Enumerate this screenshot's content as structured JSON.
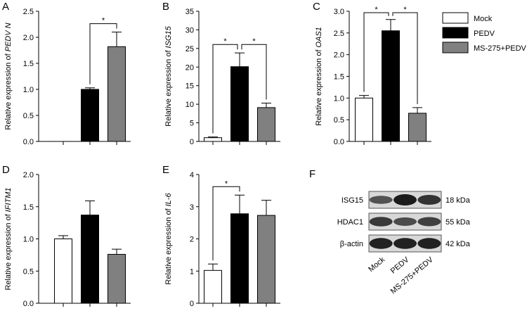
{
  "chart_data": [
    {
      "type": "bar",
      "panel": "A",
      "ylabel": "Relative expression of",
      "ylabel_gene": "PEDV N",
      "values": [
        0,
        1.0,
        1.82
      ],
      "errors": [
        null,
        0.03,
        0.28
      ],
      "ylim": [
        0,
        2.5
      ],
      "yticks": [
        {
          "value": 0,
          "label": "0.0"
        },
        {
          "value": 0.5,
          "label": "0.5"
        },
        {
          "value": 1,
          "label": "1.0"
        },
        {
          "value": 1.5,
          "label": "1.5"
        },
        {
          "value": 2,
          "label": "2.0"
        },
        {
          "value": 2.5,
          "label": "2.5"
        }
      ],
      "significance": [
        {
          "pair": [
            1,
            2
          ],
          "label": "*"
        }
      ]
    },
    {
      "type": "bar",
      "panel": "B",
      "ylabel": "Relative expression of",
      "ylabel_gene": "ISG15",
      "values": [
        1.0,
        20.1,
        9.1
      ],
      "errors": [
        0.2,
        3.7,
        1.2
      ],
      "ylim": [
        0,
        35
      ],
      "yticks": [
        0,
        5,
        10,
        15,
        20,
        25,
        30,
        35
      ],
      "significance": [
        {
          "pair": [
            0,
            1
          ],
          "label": "*"
        },
        {
          "pair": [
            1,
            2
          ],
          "label": "*"
        }
      ]
    },
    {
      "type": "bar",
      "panel": "C",
      "ylabel": "Relative expression of",
      "ylabel_gene": "OAS1",
      "values": [
        1.0,
        2.55,
        0.65
      ],
      "errors": [
        0.06,
        0.26,
        0.13
      ],
      "ylim": [
        0,
        3
      ],
      "yticks": [
        {
          "value": 0,
          "label": "0.0"
        },
        {
          "value": 0.5,
          "label": "0.5"
        },
        {
          "value": 1,
          "label": "1.0"
        },
        {
          "value": 1.5,
          "label": "1.5"
        },
        {
          "value": 2,
          "label": "2.0"
        },
        {
          "value": 2.5,
          "label": "2.5"
        },
        {
          "value": 3,
          "label": "3.0"
        }
      ],
      "significance": [
        {
          "pair": [
            0,
            1
          ],
          "label": "*"
        },
        {
          "pair": [
            1,
            2
          ],
          "label": "*"
        }
      ]
    },
    {
      "type": "bar",
      "panel": "D",
      "ylabel": "Relative expression of",
      "ylabel_gene": "IFITM1",
      "values": [
        1.0,
        1.37,
        0.76
      ],
      "errors": [
        0.05,
        0.22,
        0.08
      ],
      "ylim": [
        0,
        2
      ],
      "yticks": [
        {
          "value": 0,
          "label": "0.0"
        },
        {
          "value": 0.5,
          "label": "0.5"
        },
        {
          "value": 1,
          "label": "1.0"
        },
        {
          "value": 1.5,
          "label": "1.5"
        },
        {
          "value": 2,
          "label": "2.0"
        }
      ],
      "significance": []
    },
    {
      "type": "bar",
      "panel": "E",
      "ylabel": "Relative expression of",
      "ylabel_gene": "IL-6",
      "values": [
        1.02,
        2.78,
        2.73
      ],
      "errors": [
        0.2,
        0.58,
        0.47
      ],
      "ylim": [
        0,
        4
      ],
      "yticks": [
        0,
        1,
        2,
        3,
        4
      ],
      "significance": [
        {
          "pair": [
            0,
            1
          ],
          "label": "*"
        }
      ]
    }
  ],
  "legend": [
    {
      "name": "Mock",
      "color": "#ffffff"
    },
    {
      "name": "PEDV",
      "color": "#000000"
    },
    {
      "name": "MS-275+PEDV",
      "color": "#808080"
    }
  ],
  "blot": {
    "panel": "F",
    "rows": [
      {
        "protein": "ISG15",
        "size": "18 kDa"
      },
      {
        "protein": "HDAC1",
        "size": "55 kDa"
      },
      {
        "protein": "β-actin",
        "size": "42 kDa"
      }
    ],
    "lanes": [
      "Mock",
      "PEDV",
      "MS-275+PEDV"
    ]
  }
}
